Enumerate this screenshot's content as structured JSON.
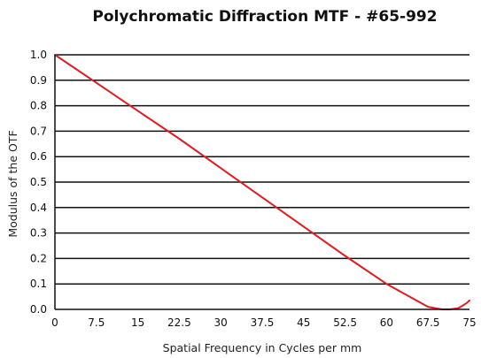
{
  "chart_data": {
    "type": "line",
    "title": "Polychromatic Diffraction MTF - #65-992",
    "xlabel": "Spatial Frequency in Cycles per mm",
    "ylabel": "Modulus of the OTF",
    "xlim": [
      0,
      75
    ],
    "ylim": [
      0,
      1.0
    ],
    "x_ticks": [
      "0",
      "7.5",
      "15",
      "22.5",
      "30",
      "37.5",
      "45",
      "52.5",
      "60",
      "67.5",
      "75"
    ],
    "y_ticks": [
      "0.0",
      "0.1",
      "0.2",
      "0.3",
      "0.4",
      "0.5",
      "0.6",
      "0.7",
      "0.8",
      "0.9",
      "1.0"
    ],
    "grid": "horizontal",
    "series": [
      {
        "color": "#e01b22",
        "x": [
          0,
          7.5,
          15,
          22.5,
          30,
          37.5,
          45,
          52.5,
          60,
          67.5,
          70,
          71.5,
          73,
          74.5,
          75
        ],
        "y": [
          1.0,
          0.89,
          0.78,
          0.67,
          0.555,
          0.44,
          0.325,
          0.21,
          0.1,
          0.01,
          0.0,
          0.0,
          0.005,
          0.025,
          0.035
        ]
      }
    ]
  }
}
